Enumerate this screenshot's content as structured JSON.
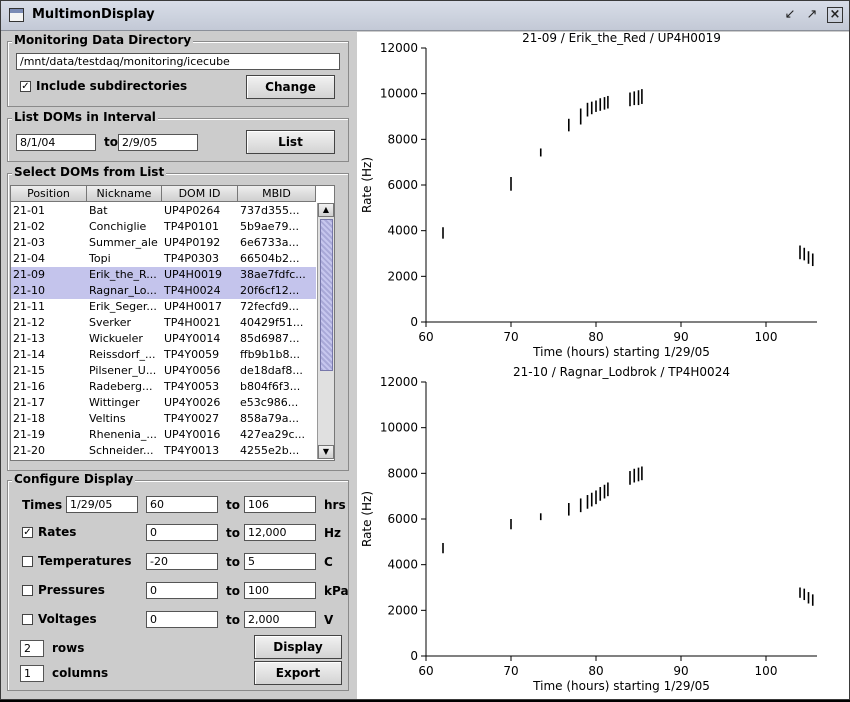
{
  "window": {
    "title": "MultimonDisplay"
  },
  "monitoring": {
    "legend": "Monitoring Data Directory",
    "path": "/mnt/data/testdaq/monitoring/icecube",
    "include_subdirs_label": "Include subdirectories",
    "include_subdirs_checked": true,
    "change_label": "Change"
  },
  "interval": {
    "legend": "List DOMs in Interval",
    "from": "8/1/04",
    "to_label": "to",
    "to": "2/9/05",
    "list_label": "List"
  },
  "doms": {
    "legend": "Select DOMs from List",
    "columns": [
      "Position",
      "Nickname",
      "DOM ID",
      "MBID"
    ],
    "rows": [
      {
        "pos": "21-01",
        "nick": "Bat",
        "id": "UP4P0264",
        "mbid": "737d355...",
        "sel": false
      },
      {
        "pos": "21-02",
        "nick": "Conchiglie",
        "id": "TP4P0101",
        "mbid": "5b9ae79...",
        "sel": false
      },
      {
        "pos": "21-03",
        "nick": "Summer_ale",
        "id": "UP4P0192",
        "mbid": "6e6733a...",
        "sel": false
      },
      {
        "pos": "21-04",
        "nick": "Topi",
        "id": "TP4P0303",
        "mbid": "66504b2...",
        "sel": false
      },
      {
        "pos": "21-09",
        "nick": "Erik_the_R...",
        "id": "UP4H0019",
        "mbid": "38ae7fdfc...",
        "sel": true
      },
      {
        "pos": "21-10",
        "nick": "Ragnar_Lo...",
        "id": "TP4H0024",
        "mbid": "20f6cf12...",
        "sel": true
      },
      {
        "pos": "21-11",
        "nick": "Erik_Seger...",
        "id": "UP4H0017",
        "mbid": "72fecfd9...",
        "sel": false
      },
      {
        "pos": "21-12",
        "nick": "Sverker",
        "id": "TP4H0021",
        "mbid": "40429f51...",
        "sel": false
      },
      {
        "pos": "21-13",
        "nick": "Wickueler",
        "id": "UP4Y0014",
        "mbid": "85d6987...",
        "sel": false
      },
      {
        "pos": "21-14",
        "nick": "Reissdorf_...",
        "id": "TP4Y0059",
        "mbid": "ffb9b1b8...",
        "sel": false
      },
      {
        "pos": "21-15",
        "nick": "Pilsener_U...",
        "id": "UP4Y0056",
        "mbid": "de18daf8...",
        "sel": false
      },
      {
        "pos": "21-16",
        "nick": "Radeberg...",
        "id": "TP4Y0053",
        "mbid": "b804f6f3...",
        "sel": false
      },
      {
        "pos": "21-17",
        "nick": "Wittinger",
        "id": "UP4Y0026",
        "mbid": "e53c986...",
        "sel": false
      },
      {
        "pos": "21-18",
        "nick": "Veltins",
        "id": "TP4Y0027",
        "mbid": "858a79a...",
        "sel": false
      },
      {
        "pos": "21-19",
        "nick": "Rhenenia_...",
        "id": "UP4Y0016",
        "mbid": "427ea29c...",
        "sel": false
      },
      {
        "pos": "21-20",
        "nick": "Schneider...",
        "id": "TP4Y0013",
        "mbid": "4255e2b...",
        "sel": false
      }
    ]
  },
  "config": {
    "legend": "Configure Display",
    "to_label": "to",
    "times": {
      "label": "Times",
      "date": "1/29/05",
      "from": "60",
      "to": "106",
      "unit": "hrs"
    },
    "rates": {
      "label": "Rates",
      "checked": true,
      "from": "0",
      "to": "12,000",
      "unit": "Hz"
    },
    "temps": {
      "label": "Temperatures",
      "checked": false,
      "from": "-20",
      "to": "5",
      "unit": "C"
    },
    "pressures": {
      "label": "Pressures",
      "checked": false,
      "from": "0",
      "to": "100",
      "unit": "kPa"
    },
    "voltages": {
      "label": "Voltages",
      "checked": false,
      "from": "0",
      "to": "2,000",
      "unit": "V"
    },
    "rows": {
      "value": "2",
      "label": "rows"
    },
    "columns": {
      "value": "1",
      "label": "columns"
    },
    "display_label": "Display",
    "export_label": "Export"
  },
  "chart_data": [
    {
      "type": "scatter",
      "title": "21-09 / Erik_the_Red / UP4H0019",
      "xlabel": "Time (hours) starting 1/29/05",
      "ylabel": "Rate (Hz)",
      "xlim": [
        60,
        106
      ],
      "ylim": [
        0,
        12000
      ],
      "xticks": [
        60,
        70,
        80,
        90,
        100
      ],
      "yticks": [
        0,
        2000,
        4000,
        6000,
        8000,
        10000,
        12000
      ],
      "ytick_labels": [
        "0",
        "2000",
        "4000",
        "6000",
        "8000",
        "10000",
        "12000"
      ],
      "segments": [
        {
          "x": 62.0,
          "y0": 3650,
          "y1": 4150
        },
        {
          "x": 70.0,
          "y0": 5750,
          "y1": 6350
        },
        {
          "x": 73.5,
          "y0": 7250,
          "y1": 7600
        },
        {
          "x": 76.8,
          "y0": 8350,
          "y1": 8900
        },
        {
          "x": 78.2,
          "y0": 8650,
          "y1": 9350
        },
        {
          "x": 79.0,
          "y0": 9000,
          "y1": 9600
        },
        {
          "x": 79.5,
          "y0": 9100,
          "y1": 9650
        },
        {
          "x": 80.0,
          "y0": 9200,
          "y1": 9700
        },
        {
          "x": 80.5,
          "y0": 9250,
          "y1": 9800
        },
        {
          "x": 81.0,
          "y0": 9300,
          "y1": 9850
        },
        {
          "x": 81.4,
          "y0": 9350,
          "y1": 9900
        },
        {
          "x": 84.0,
          "y0": 9450,
          "y1": 10050
        },
        {
          "x": 84.5,
          "y0": 9500,
          "y1": 10100
        },
        {
          "x": 85.0,
          "y0": 9500,
          "y1": 10150
        },
        {
          "x": 85.4,
          "y0": 9550,
          "y1": 10200
        },
        {
          "x": 104.0,
          "y0": 2750,
          "y1": 3350
        },
        {
          "x": 104.5,
          "y0": 2700,
          "y1": 3250
        },
        {
          "x": 105.0,
          "y0": 2550,
          "y1": 3100
        },
        {
          "x": 105.5,
          "y0": 2450,
          "y1": 3000
        }
      ]
    },
    {
      "type": "scatter",
      "title": "21-10 / Ragnar_Lodbrok / TP4H0024",
      "xlabel": "Time (hours) starting 1/29/05",
      "ylabel": "Rate (Hz)",
      "xlim": [
        60,
        106
      ],
      "ylim": [
        0,
        12000
      ],
      "xticks": [
        60,
        70,
        80,
        90,
        100
      ],
      "yticks": [
        0,
        2000,
        4000,
        6000,
        8000,
        10000,
        12000
      ],
      "ytick_labels": [
        "0",
        "2000",
        "4000",
        "6000",
        "8000",
        "10000",
        "12000"
      ],
      "segments": [
        {
          "x": 62.0,
          "y0": 4500,
          "y1": 4950
        },
        {
          "x": 70.0,
          "y0": 5550,
          "y1": 6000
        },
        {
          "x": 73.5,
          "y0": 5950,
          "y1": 6250
        },
        {
          "x": 76.8,
          "y0": 6150,
          "y1": 6700
        },
        {
          "x": 78.2,
          "y0": 6300,
          "y1": 6900
        },
        {
          "x": 79.0,
          "y0": 6450,
          "y1": 7050
        },
        {
          "x": 79.5,
          "y0": 6550,
          "y1": 7150
        },
        {
          "x": 80.0,
          "y0": 6650,
          "y1": 7250
        },
        {
          "x": 80.5,
          "y0": 6800,
          "y1": 7400
        },
        {
          "x": 81.0,
          "y0": 6900,
          "y1": 7500
        },
        {
          "x": 81.4,
          "y0": 7000,
          "y1": 7600
        },
        {
          "x": 84.0,
          "y0": 7500,
          "y1": 8100
        },
        {
          "x": 84.5,
          "y0": 7600,
          "y1": 8200
        },
        {
          "x": 85.0,
          "y0": 7650,
          "y1": 8250
        },
        {
          "x": 85.4,
          "y0": 7700,
          "y1": 8300
        },
        {
          "x": 104.0,
          "y0": 2550,
          "y1": 3000
        },
        {
          "x": 104.5,
          "y0": 2450,
          "y1": 2950
        },
        {
          "x": 105.0,
          "y0": 2300,
          "y1": 2800
        },
        {
          "x": 105.5,
          "y0": 2200,
          "y1": 2700
        }
      ]
    }
  ]
}
